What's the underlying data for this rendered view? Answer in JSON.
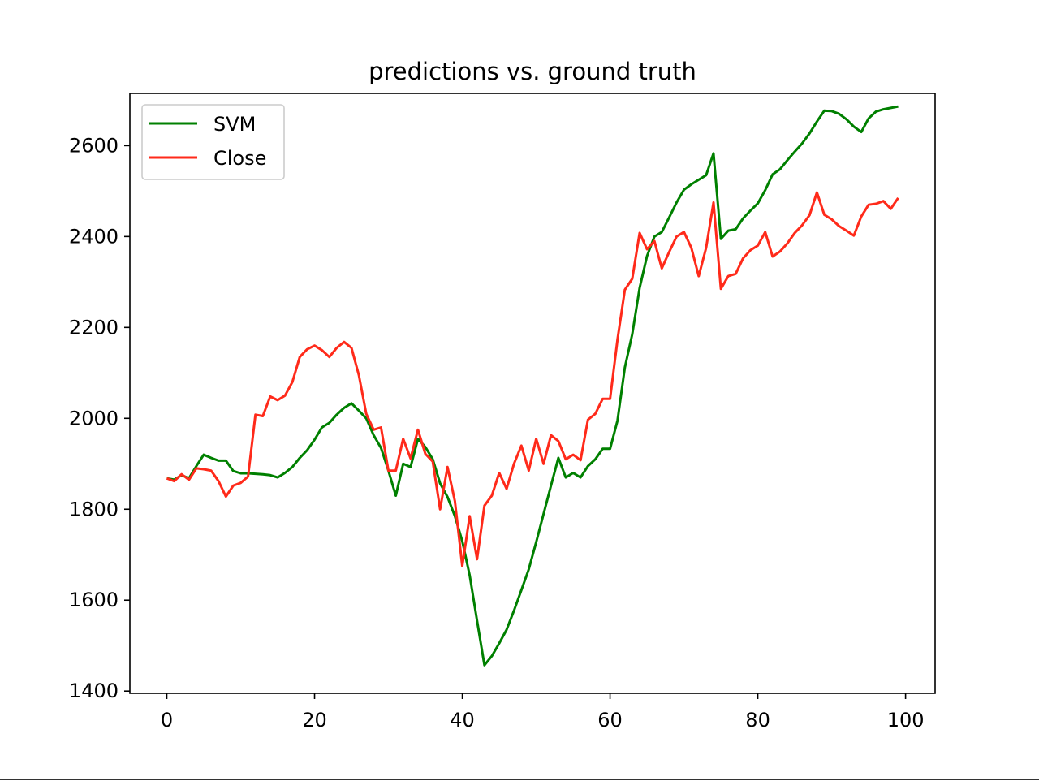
{
  "chart_data": {
    "type": "line",
    "title": "predictions vs. ground truth",
    "xlabel": "",
    "ylabel": "",
    "xlim": [
      -5,
      104
    ],
    "ylim": [
      1395,
      2715
    ],
    "xticks": [
      0,
      20,
      40,
      60,
      80,
      100
    ],
    "yticks": [
      1400,
      1600,
      1800,
      2000,
      2200,
      2400,
      2600
    ],
    "grid": false,
    "legend": "upper left",
    "series": [
      {
        "name": "SVM",
        "color": "#008000",
        "x": [
          0,
          1,
          2,
          3,
          4,
          5,
          6,
          7,
          8,
          9,
          10,
          11,
          12,
          13,
          14,
          15,
          16,
          17,
          18,
          19,
          20,
          21,
          22,
          23,
          24,
          25,
          26,
          27,
          28,
          29,
          30,
          31,
          32,
          33,
          34,
          35,
          36,
          37,
          38,
          39,
          40,
          41,
          42,
          43,
          44,
          45,
          46,
          47,
          48,
          49,
          50,
          51,
          52,
          53,
          54,
          55,
          56,
          57,
          58,
          59,
          60,
          61,
          62,
          63,
          64,
          65,
          66,
          67,
          68,
          69,
          70,
          71,
          72,
          73,
          74,
          75,
          76,
          77,
          78,
          79,
          80,
          81,
          82,
          83,
          84,
          85,
          86,
          87,
          88,
          89,
          90,
          91,
          92,
          93,
          94,
          95,
          96,
          97,
          98,
          99
        ],
        "y": [
          1868,
          1865,
          1875,
          1868,
          1895,
          1920,
          1913,
          1907,
          1907,
          1884,
          1879,
          1879,
          1878,
          1877,
          1875,
          1870,
          1880,
          1893,
          1913,
          1930,
          1953,
          1980,
          1990,
          2008,
          2023,
          2033,
          2017,
          2000,
          1963,
          1935,
          1885,
          1830,
          1900,
          1893,
          1955,
          1937,
          1910,
          1857,
          1827,
          1785,
          1730,
          1655,
          1555,
          1457,
          1477,
          1505,
          1535,
          1577,
          1622,
          1668,
          1728,
          1790,
          1852,
          1913,
          1870,
          1880,
          1870,
          1895,
          1910,
          1933,
          1933,
          1995,
          2112,
          2185,
          2287,
          2357,
          2400,
          2410,
          2442,
          2475,
          2503,
          2515,
          2525,
          2535,
          2583,
          2395,
          2413,
          2416,
          2440,
          2457,
          2473,
          2502,
          2537,
          2548,
          2568,
          2587,
          2605,
          2627,
          2653,
          2677,
          2676,
          2670,
          2658,
          2642,
          2630,
          2660,
          2675,
          2680,
          2683,
          2686
        ]
      },
      {
        "name": "Close",
        "color": "#ff2a1a",
        "x": [
          0,
          1,
          2,
          3,
          4,
          5,
          6,
          7,
          8,
          9,
          10,
          11,
          12,
          13,
          14,
          15,
          16,
          17,
          18,
          19,
          20,
          21,
          22,
          23,
          24,
          25,
          26,
          27,
          28,
          29,
          30,
          31,
          32,
          33,
          34,
          35,
          36,
          37,
          38,
          39,
          40,
          41,
          42,
          43,
          44,
          45,
          46,
          47,
          48,
          49,
          50,
          51,
          52,
          53,
          54,
          55,
          56,
          57,
          58,
          59,
          60,
          61,
          62,
          63,
          64,
          65,
          66,
          67,
          68,
          69,
          70,
          71,
          72,
          73,
          74,
          75,
          76,
          77,
          78,
          79,
          80,
          81,
          82,
          83,
          84,
          85,
          86,
          87,
          88,
          89,
          90,
          91,
          92,
          93,
          94,
          95,
          96,
          97,
          98,
          99
        ],
        "y": [
          1868,
          1862,
          1877,
          1865,
          1890,
          1888,
          1885,
          1862,
          1828,
          1852,
          1858,
          1872,
          2008,
          2005,
          2048,
          2040,
          2050,
          2080,
          2135,
          2152,
          2160,
          2150,
          2135,
          2155,
          2168,
          2155,
          2095,
          2010,
          1975,
          1980,
          1885,
          1885,
          1955,
          1912,
          1975,
          1922,
          1905,
          1800,
          1893,
          1818,
          1675,
          1785,
          1690,
          1808,
          1830,
          1880,
          1845,
          1900,
          1940,
          1885,
          1955,
          1900,
          1963,
          1950,
          1910,
          1920,
          1908,
          1997,
          2010,
          2043,
          2043,
          2173,
          2283,
          2307,
          2408,
          2372,
          2390,
          2330,
          2366,
          2400,
          2410,
          2375,
          2313,
          2375,
          2475,
          2285,
          2313,
          2318,
          2352,
          2370,
          2380,
          2410,
          2356,
          2367,
          2385,
          2408,
          2425,
          2447,
          2497,
          2448,
          2438,
          2423,
          2413,
          2402,
          2444,
          2470,
          2472,
          2478,
          2461,
          2485
        ]
      }
    ]
  }
}
